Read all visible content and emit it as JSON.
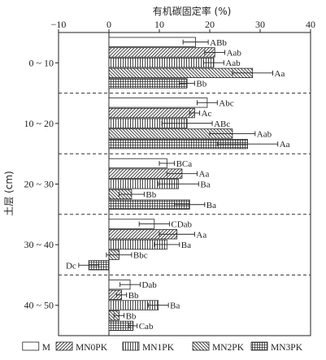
{
  "chart_data": {
    "type": "bar",
    "orientation": "horizontal",
    "title": "",
    "xlabel": "有机碳固定率 (%)",
    "ylabel": "土层 (cm)",
    "xlim": [
      -10,
      40
    ],
    "x_ticks": [
      "−10",
      "0",
      "10",
      "20",
      "30",
      "40"
    ],
    "x_tick_values": [
      -10,
      0,
      10,
      20,
      30,
      40
    ],
    "x_axis_position": "top",
    "legend_position": "bottom",
    "grid": false,
    "groups": [
      "0 ~ 10",
      "10 ~ 20",
      "20 ~ 30",
      "30 ~ 40",
      "40 ~ 50"
    ],
    "series": [
      {
        "name": "M",
        "pattern": "blank",
        "values": [
          17.2,
          19.5,
          11.5,
          9.0,
          4.2
        ],
        "errors": [
          2.5,
          2.0,
          1.5,
          3.0,
          2.0
        ],
        "labels": [
          "ABb",
          "Abc",
          "BCa",
          "CDab",
          "Dab"
        ]
      },
      {
        "name": "MN0PK",
        "pattern": "diagonal",
        "values": [
          21.0,
          17.0,
          14.5,
          13.5,
          2.5
        ],
        "errors": [
          2.0,
          1.0,
          3.0,
          3.5,
          1.0
        ],
        "labels": [
          "Aab",
          "Ac",
          "Aa",
          "Aa",
          "Bb"
        ]
      },
      {
        "name": "MN1PK",
        "pattern": "vertical",
        "values": [
          20.8,
          15.5,
          13.8,
          11.5,
          9.8
        ],
        "errors": [
          2.0,
          5.0,
          4.0,
          2.5,
          2.0
        ],
        "labels": [
          "Aab",
          "ABc",
          "Ba",
          "Ba",
          "Ba"
        ]
      },
      {
        "name": "MN2PK",
        "pattern": "backdiagonal",
        "values": [
          28.5,
          24.5,
          4.5,
          2.0,
          2.0
        ],
        "errors": [
          4.0,
          4.5,
          2.5,
          2.5,
          1.0
        ],
        "labels": [
          "Aa",
          "Aab",
          "Bb",
          "Bbc",
          "Bb"
        ]
      },
      {
        "name": "MN3PK",
        "pattern": "grid",
        "values": [
          15.5,
          27.5,
          16.0,
          -4.0,
          4.8
        ],
        "errors": [
          1.5,
          6.0,
          3.0,
          2.0,
          0.8
        ],
        "labels": [
          "Bb",
          "Aa",
          "Ba",
          "Dc",
          "Cab"
        ]
      }
    ]
  }
}
